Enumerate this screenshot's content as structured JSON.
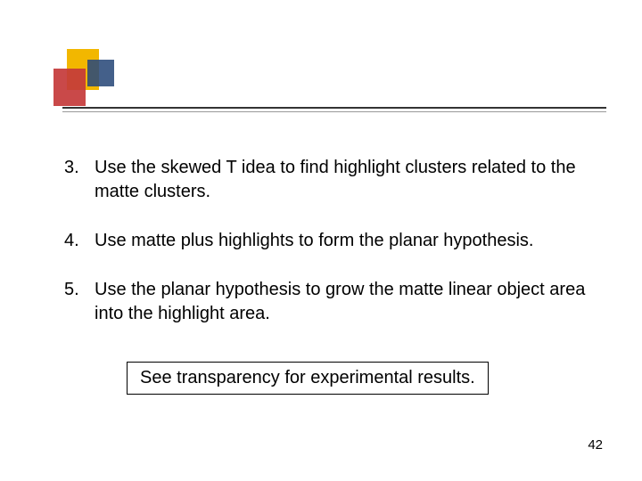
{
  "decoration": {
    "yellow": "#f2b700",
    "red": "#c43a3a",
    "blue": "#2a4a7a"
  },
  "ruler": {
    "top_color": "#333333",
    "bottom_color": "#999999"
  },
  "list": {
    "items": [
      {
        "number": "3.",
        "text": "Use the skewed T idea to find highlight clusters related to the matte clusters."
      },
      {
        "number": "4.",
        "text": "Use matte plus highlights to form the planar hypothesis."
      },
      {
        "number": "5.",
        "text": "Use the planar hypothesis to grow the matte linear object area into the highlight area."
      }
    ]
  },
  "note": {
    "text": "See transparency for experimental results."
  },
  "page_number": "42",
  "typography": {
    "body_fontsize": 20,
    "page_number_fontsize": 15,
    "text_color": "#000000",
    "background_color": "#ffffff"
  }
}
